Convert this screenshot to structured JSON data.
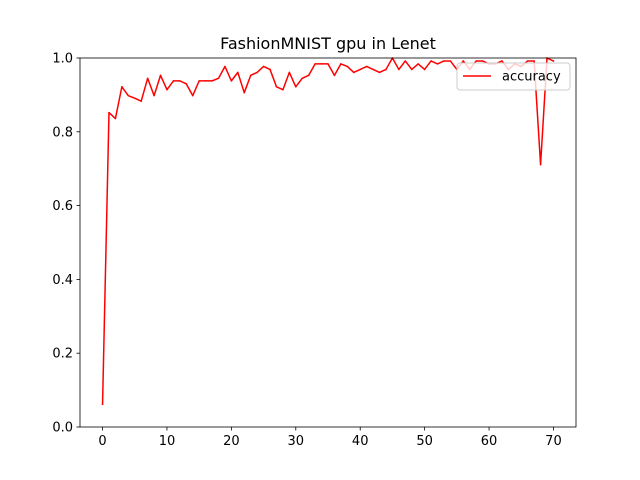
{
  "chart_data": {
    "type": "line",
    "title": "FashionMNIST gpu in Lenet",
    "xlabel": "",
    "ylabel": "",
    "xlim": [
      -3.5,
      73.5
    ],
    "ylim": [
      0,
      1.0
    ],
    "xticks": [
      0,
      10,
      20,
      30,
      40,
      50,
      60,
      70
    ],
    "xtick_labels": [
      "0",
      "10",
      "20",
      "30",
      "40",
      "50",
      "60",
      "70"
    ],
    "yticks": [
      0.0,
      0.2,
      0.4,
      0.6,
      0.8,
      1.0
    ],
    "ytick_labels": [
      "0.0",
      "0.2",
      "0.4",
      "0.6",
      "0.8",
      "1.0"
    ],
    "grid": false,
    "legend_position": "top-right",
    "series": [
      {
        "name": "accuracy",
        "color": "#ff0000",
        "x": [
          0,
          1,
          2,
          3,
          4,
          5,
          6,
          7,
          8,
          9,
          10,
          11,
          12,
          13,
          14,
          15,
          16,
          17,
          18,
          19,
          20,
          21,
          22,
          23,
          24,
          25,
          26,
          27,
          28,
          29,
          30,
          31,
          32,
          33,
          34,
          35,
          36,
          37,
          38,
          39,
          40,
          41,
          42,
          43,
          44,
          45,
          46,
          47,
          48,
          49,
          50,
          51,
          52,
          53,
          54,
          55,
          56,
          57,
          58,
          59,
          60,
          61,
          62,
          63,
          64,
          65,
          66,
          67,
          68,
          69,
          70
        ],
        "values": [
          0.062,
          0.852,
          0.836,
          0.922,
          0.898,
          0.891,
          0.883,
          0.945,
          0.898,
          0.953,
          0.914,
          0.938,
          0.938,
          0.93,
          0.898,
          0.938,
          0.938,
          0.938,
          0.945,
          0.977,
          0.938,
          0.961,
          0.906,
          0.953,
          0.961,
          0.977,
          0.969,
          0.922,
          0.914,
          0.961,
          0.922,
          0.945,
          0.953,
          0.984,
          0.984,
          0.984,
          0.953,
          0.984,
          0.977,
          0.961,
          0.969,
          0.977,
          0.969,
          0.961,
          0.969,
          1.0,
          0.969,
          0.992,
          0.969,
          0.984,
          0.969,
          0.992,
          0.984,
          0.992,
          0.992,
          0.969,
          0.992,
          0.969,
          0.992,
          0.992,
          0.984,
          0.984,
          0.992,
          0.969,
          0.984,
          0.977,
          0.992,
          0.992,
          0.711,
          1.0,
          0.992
        ]
      }
    ]
  }
}
